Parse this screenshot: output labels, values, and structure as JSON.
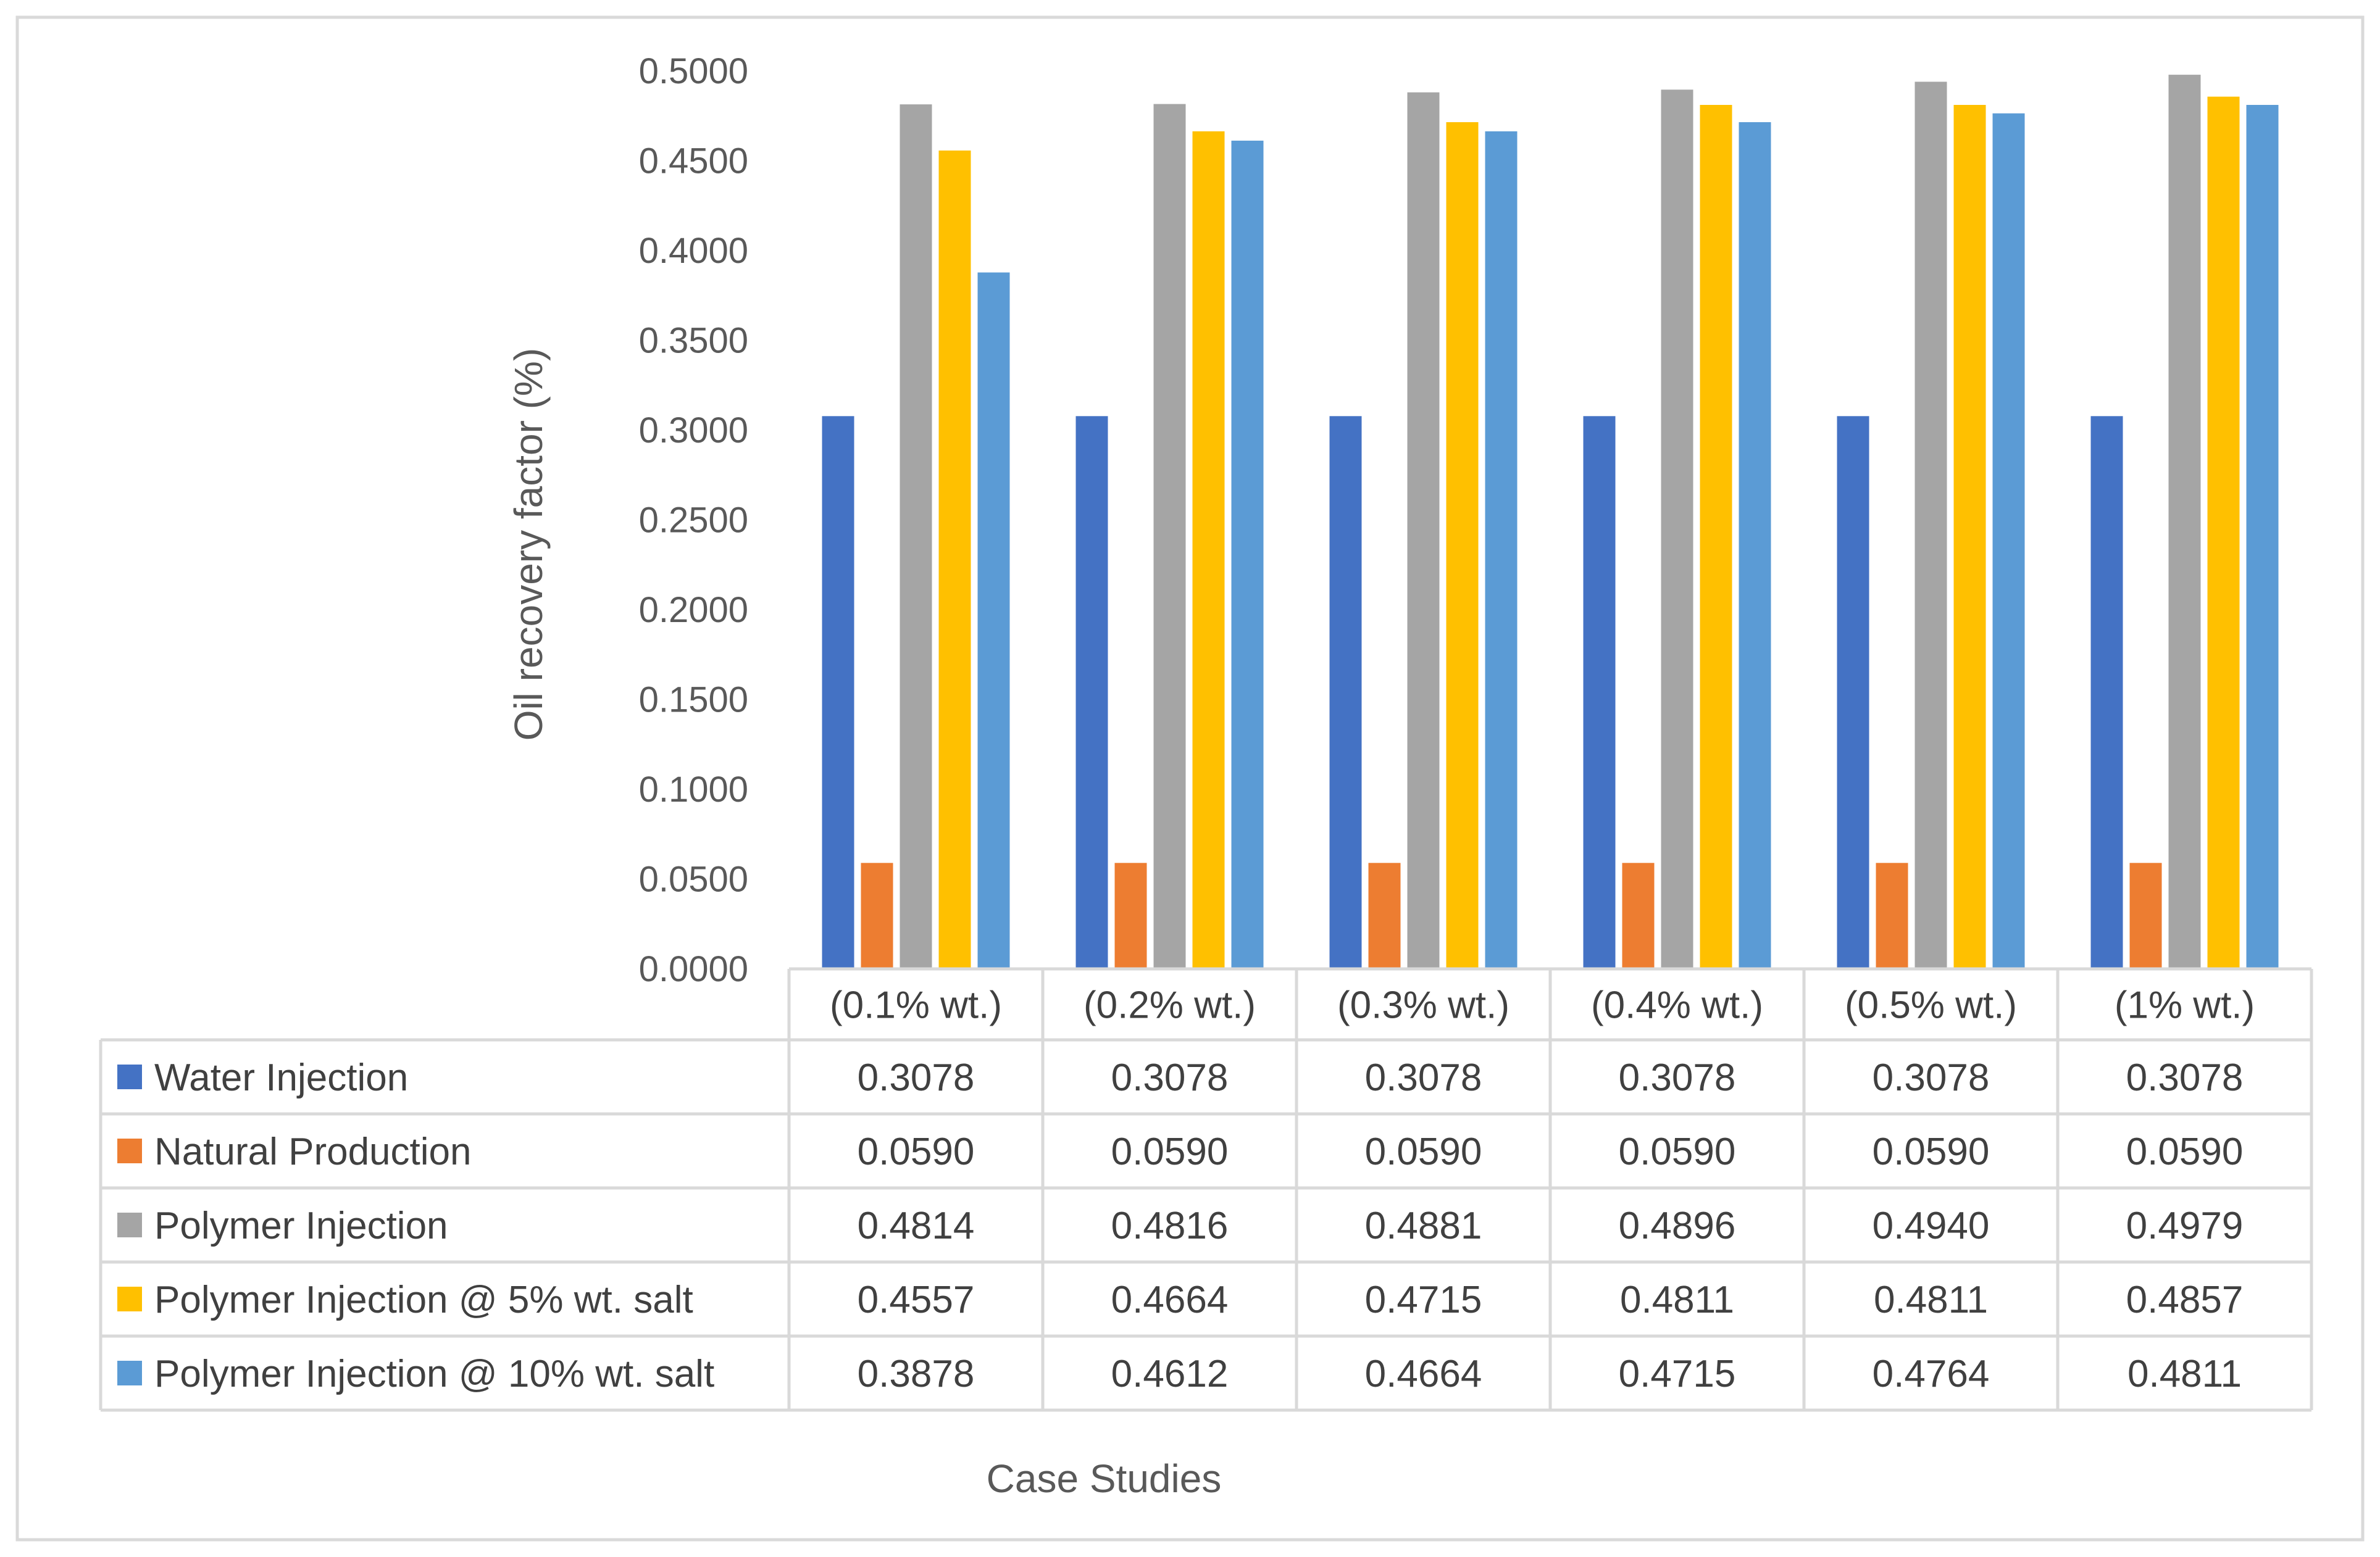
{
  "chart_data": {
    "type": "bar",
    "title": "",
    "xlabel": "Case Studies",
    "ylabel": "Oil recovery factor (%)",
    "ylim": [
      0,
      0.5
    ],
    "ytick_step": 0.05,
    "y_ticks": [
      "0.0000",
      "0.0500",
      "0.1000",
      "0.1500",
      "0.2000",
      "0.2500",
      "0.3000",
      "0.3500",
      "0.4000",
      "0.4500",
      "0.5000"
    ],
    "grid": false,
    "legend": "data-table",
    "categories": [
      "(0.1% wt.)",
      "(0.2% wt.)",
      "(0.3% wt.)",
      "(0.4% wt.)",
      "(0.5% wt.)",
      "(1% wt.)"
    ],
    "series": [
      {
        "name": "Water Injection",
        "color": "#4472C4",
        "values": [
          0.3078,
          0.3078,
          0.3078,
          0.3078,
          0.3078,
          0.3078
        ],
        "labels": [
          "0.3078",
          "0.3078",
          "0.3078",
          "0.3078",
          "0.3078",
          "0.3078"
        ]
      },
      {
        "name": "Natural Production",
        "color": "#ED7D31",
        "values": [
          0.059,
          0.059,
          0.059,
          0.059,
          0.059,
          0.059
        ],
        "labels": [
          "0.0590",
          "0.0590",
          "0.0590",
          "0.0590",
          "0.0590",
          "0.0590"
        ]
      },
      {
        "name": "Polymer Injection",
        "color": "#A5A5A5",
        "values": [
          0.4814,
          0.4816,
          0.4881,
          0.4896,
          0.494,
          0.4979
        ],
        "labels": [
          "0.4814",
          "0.4816",
          "0.4881",
          "0.4896",
          "0.4940",
          "0.4979"
        ]
      },
      {
        "name": "Polymer Injection @ 5% wt. salt",
        "color": "#FFC000",
        "values": [
          0.4557,
          0.4664,
          0.4715,
          0.4811,
          0.4811,
          0.4857
        ],
        "labels": [
          "0.4557",
          "0.4664",
          "0.4715",
          "0.4811",
          "0.4811",
          "0.4857"
        ]
      },
      {
        "name": "Polymer Injection @ 10% wt. salt",
        "color": "#5B9BD5",
        "values": [
          0.3878,
          0.4612,
          0.4664,
          0.4715,
          0.4764,
          0.4811
        ],
        "labels": [
          "0.3878",
          "0.4612",
          "0.4664",
          "0.4715",
          "0.4764",
          "0.4811"
        ]
      }
    ]
  }
}
